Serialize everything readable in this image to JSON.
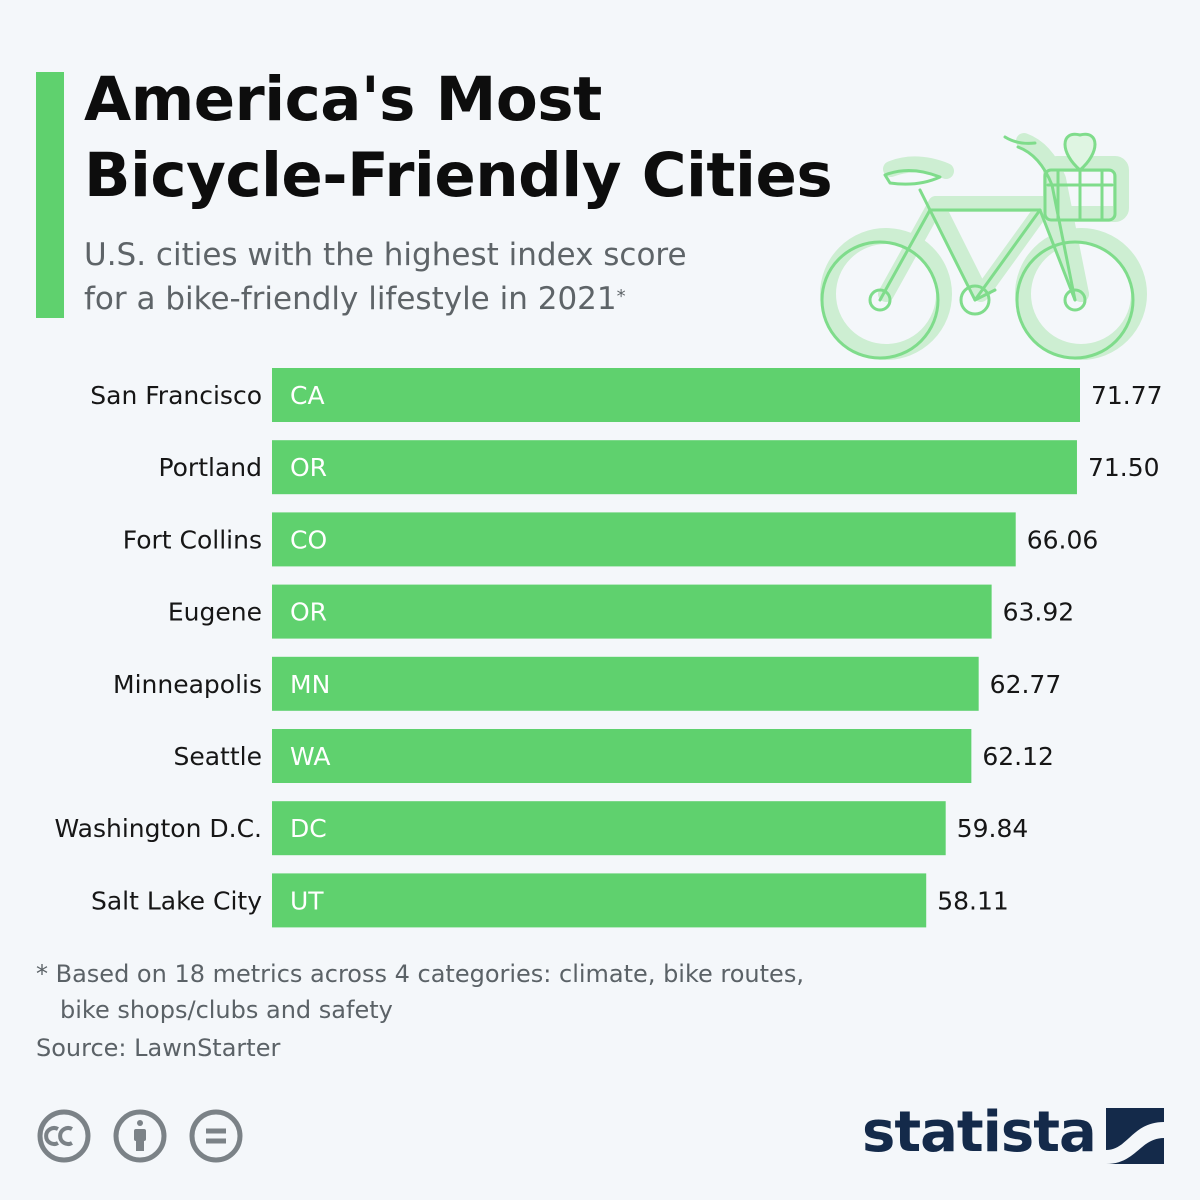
{
  "header": {
    "title_line1": "America's Most",
    "title_line2": "Bicycle-Friendly Cities",
    "subtitle_line1": "U.S. cities with the highest index score",
    "subtitle_line2": "for a bike-friendly lifestyle in 2021",
    "subtitle_mark": "*"
  },
  "chart_data": {
    "type": "bar",
    "orientation": "horizontal",
    "title": "America's Most Bicycle-Friendly Cities",
    "categories": [
      "San Francisco",
      "Portland",
      "Fort Collins",
      "Eugene",
      "Minneapolis",
      "Seattle",
      "Washington D.C.",
      "Salt Lake City"
    ],
    "states": [
      "CA",
      "OR",
      "CO",
      "OR",
      "MN",
      "WA",
      "DC",
      "UT"
    ],
    "values": [
      71.77,
      71.5,
      66.06,
      63.92,
      62.77,
      62.12,
      59.84,
      58.11
    ],
    "value_labels": [
      "71.77",
      "71.50",
      "66.06",
      "63.92",
      "62.77",
      "62.12",
      "59.84",
      "58.11"
    ],
    "xlim": [
      0,
      71.77
    ],
    "grid": false,
    "bar_color": "#5fd16e"
  },
  "footer": {
    "footnote_line1": "* Based on 18 metrics across 4 categories: climate, bike routes,",
    "footnote_line2": "bike shops/clubs and safety",
    "source": "Source: LawnStarter",
    "brand": "statista"
  },
  "colors": {
    "accent": "#5fd16e",
    "title": "#0d0d0d",
    "muted": "#5b6267",
    "brand": "#142a4a"
  }
}
